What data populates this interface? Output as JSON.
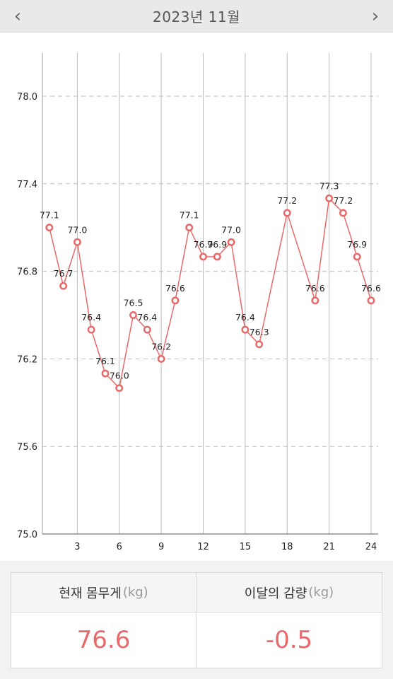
{
  "header": {
    "title": "2023년 11월",
    "prev_icon": "‹",
    "next_icon": "›"
  },
  "chart_data": {
    "type": "line",
    "title": "",
    "xlabel": "",
    "ylabel": "",
    "x_ticks": [
      3,
      6,
      9,
      12,
      15,
      18,
      21,
      24
    ],
    "y_ticks": [
      "75.0",
      "75.6",
      "76.2",
      "76.8",
      "77.4",
      "78.0"
    ],
    "ylim": [
      75.0,
      78.0
    ],
    "xlim": [
      0,
      24
    ],
    "grid": {
      "x": "solid",
      "y": "dashed"
    },
    "color": "#e8696a",
    "points": [
      {
        "x": 1,
        "y": 77.1,
        "label": "77.1"
      },
      {
        "x": 2,
        "y": 76.7,
        "label": "76.7"
      },
      {
        "x": 3,
        "y": 77.0,
        "label": "77.0"
      },
      {
        "x": 4,
        "y": 76.4,
        "label": "76.4"
      },
      {
        "x": 5,
        "y": 76.1,
        "label": "76.1"
      },
      {
        "x": 6,
        "y": 76.0,
        "label": "76.0"
      },
      {
        "x": 7,
        "y": 76.5,
        "label": "76.5"
      },
      {
        "x": 8,
        "y": 76.4,
        "label": "76.4"
      },
      {
        "x": 9,
        "y": 76.2,
        "label": "76.2"
      },
      {
        "x": 10,
        "y": 76.6,
        "label": "76.6"
      },
      {
        "x": 11,
        "y": 77.1,
        "label": "77.1"
      },
      {
        "x": 12,
        "y": 76.9,
        "label": "76.9"
      },
      {
        "x": 13,
        "y": 76.9,
        "label": "76.9"
      },
      {
        "x": 14,
        "y": 77.0,
        "label": "77.0"
      },
      {
        "x": 15,
        "y": 76.4,
        "label": "76.4"
      },
      {
        "x": 16,
        "y": 76.3,
        "label": "76.3"
      },
      {
        "x": 18,
        "y": 77.2,
        "label": "77.2"
      },
      {
        "x": 20,
        "y": 76.6,
        "label": "76.6"
      },
      {
        "x": 21,
        "y": 77.3,
        "label": "77.3"
      },
      {
        "x": 22,
        "y": 77.2,
        "label": "77.2"
      },
      {
        "x": 23,
        "y": 76.9,
        "label": "76.9"
      },
      {
        "x": 24,
        "y": 76.6,
        "label": "76.6"
      }
    ]
  },
  "summary": {
    "current_label": "현재 몸무게",
    "current_unit": "(kg)",
    "current_value": "76.6",
    "change_label": "이달의 감량",
    "change_unit": "(kg)",
    "change_value": "-0.5"
  }
}
